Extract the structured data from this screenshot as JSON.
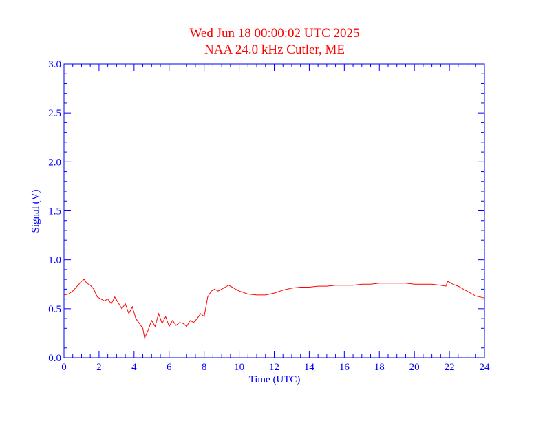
{
  "chart_data": {
    "type": "line",
    "title": "Wed Jun 18 00:00:02 UTC 2025",
    "subtitle": "NAA 24.0 kHz Cutler, ME",
    "xlabel": "Time (UTC)",
    "ylabel": "Signal (V)",
    "xlim": [
      0,
      24
    ],
    "ylim": [
      0,
      3.0
    ],
    "x_ticks": [
      "0",
      "2",
      "4",
      "6",
      "8",
      "10",
      "12",
      "14",
      "16",
      "18",
      "20",
      "22",
      "24"
    ],
    "y_ticks": [
      "0.0",
      "0.5",
      "1.0",
      "1.5",
      "2.0",
      "2.5",
      "3.0"
    ],
    "grid": false,
    "colors": {
      "axes": "#0000ff",
      "title": "#ff0000",
      "series": "#ff0000"
    },
    "series": [
      {
        "x": [
          0,
          0.25,
          0.5,
          0.75,
          1.0,
          1.15,
          1.3,
          1.5,
          1.7,
          1.9,
          2.1,
          2.3,
          2.5,
          2.7,
          2.9,
          3.1,
          3.3,
          3.5,
          3.7,
          3.9,
          4.1,
          4.3,
          4.5,
          4.6,
          4.8,
          5.0,
          5.2,
          5.4,
          5.6,
          5.8,
          6.0,
          6.2,
          6.4,
          6.6,
          6.8,
          7.0,
          7.2,
          7.4,
          7.6,
          7.8,
          8.0,
          8.2,
          8.4,
          8.6,
          8.8,
          9.0,
          9.2,
          9.4,
          9.6,
          9.8,
          10.0,
          10.5,
          11.0,
          11.5,
          12.0,
          12.5,
          13.0,
          13.5,
          14.0,
          14.5,
          15.0,
          15.5,
          16.0,
          16.5,
          17.0,
          17.5,
          18.0,
          18.5,
          19.0,
          19.5,
          20.0,
          20.5,
          21.0,
          21.5,
          21.8,
          21.9,
          22.0,
          22.2,
          22.5,
          23.0,
          23.5,
          24.0
        ],
        "values": [
          0.64,
          0.65,
          0.68,
          0.73,
          0.78,
          0.8,
          0.76,
          0.74,
          0.7,
          0.62,
          0.6,
          0.58,
          0.6,
          0.55,
          0.62,
          0.56,
          0.5,
          0.55,
          0.45,
          0.52,
          0.4,
          0.35,
          0.3,
          0.2,
          0.28,
          0.38,
          0.32,
          0.45,
          0.35,
          0.42,
          0.32,
          0.38,
          0.33,
          0.36,
          0.35,
          0.32,
          0.38,
          0.36,
          0.4,
          0.45,
          0.42,
          0.62,
          0.68,
          0.7,
          0.68,
          0.7,
          0.72,
          0.74,
          0.72,
          0.7,
          0.68,
          0.65,
          0.64,
          0.64,
          0.66,
          0.69,
          0.71,
          0.72,
          0.72,
          0.73,
          0.73,
          0.74,
          0.74,
          0.74,
          0.75,
          0.75,
          0.76,
          0.76,
          0.76,
          0.76,
          0.75,
          0.75,
          0.75,
          0.74,
          0.73,
          0.78,
          0.77,
          0.75,
          0.73,
          0.68,
          0.63,
          0.61
        ]
      }
    ]
  }
}
